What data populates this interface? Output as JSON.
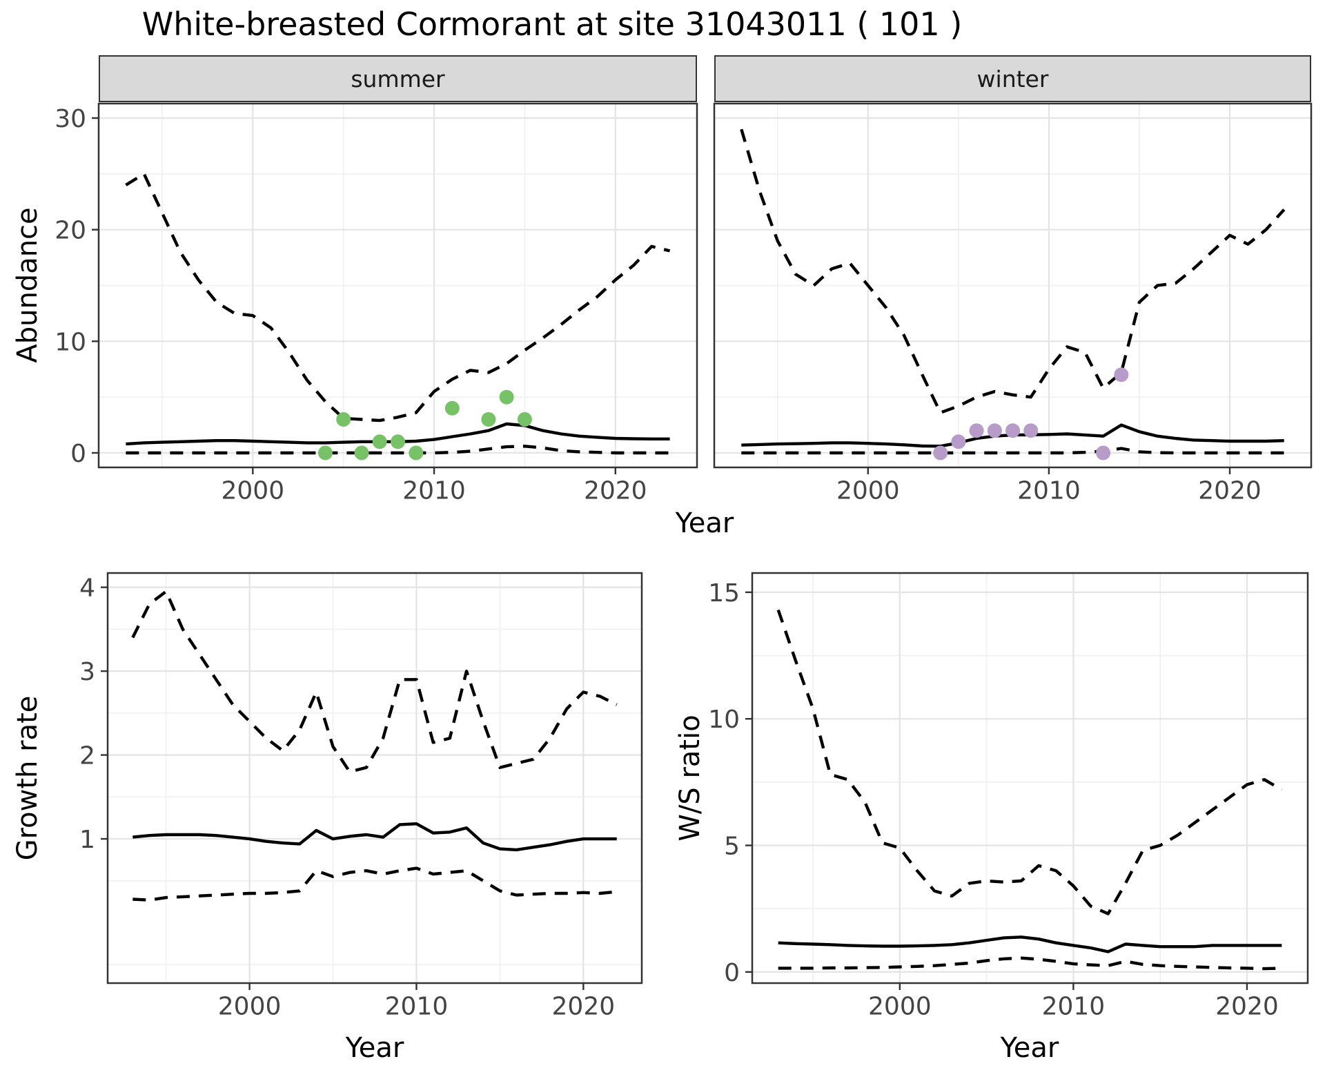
{
  "title": "White-breasted Cormorant at site 31043011 ( 101 )",
  "axis_labels": {
    "abundance": "Abundance",
    "year": "Year",
    "growth_rate": "Growth rate",
    "ws_ratio": "W/S ratio"
  },
  "colors": {
    "line": "#000000",
    "strip_bg": "#d9d9d9",
    "summer_dot": "#77c266",
    "winter_dot": "#b79bc9",
    "grid_major": "#e4e4e4",
    "grid_minor": "#f1f1f1",
    "tick_text": "#444444"
  },
  "chart_data": [
    {
      "type": "line",
      "name": "abundance-summer",
      "facet": "summer",
      "xlabel": "Year",
      "ylabel": "Abundance",
      "xlim": [
        1991.5,
        2024.5
      ],
      "ylim": [
        -1.3,
        31.3
      ],
      "x_ticks": [
        2000,
        2010,
        2020
      ],
      "y_ticks": [
        0,
        10,
        20,
        30
      ],
      "x_minor": [
        1995,
        2005,
        2015
      ],
      "y_minor": [
        5,
        15,
        25
      ],
      "y_tick_labels": true,
      "x": [
        1993,
        1994,
        1995,
        1996,
        1997,
        1998,
        1999,
        2000,
        2001,
        2002,
        2003,
        2004,
        2005,
        2006,
        2007,
        2008,
        2009,
        2010,
        2011,
        2012,
        2013,
        2014,
        2015,
        2016,
        2017,
        2018,
        2019,
        2020,
        2021,
        2022,
        2023
      ],
      "series": [
        {
          "name": "upper-ci",
          "style": "dashed",
          "y": [
            24,
            25,
            21.5,
            18,
            15.5,
            13.5,
            12.5,
            12.3,
            11.2,
            9,
            6.5,
            4.6,
            3.1,
            3,
            2.9,
            3.2,
            3.6,
            5.5,
            6.6,
            7.4,
            7.2,
            8,
            9.2,
            10.3,
            11.5,
            12.8,
            14,
            15.5,
            16.8,
            18.5,
            18.1
          ]
        },
        {
          "name": "median",
          "style": "solid",
          "y": [
            0.8,
            0.9,
            0.95,
            1,
            1.05,
            1.1,
            1.1,
            1.05,
            1,
            0.95,
            0.9,
            0.9,
            0.95,
            1,
            1,
            1,
            1.05,
            1.2,
            1.45,
            1.7,
            2,
            2.6,
            2.45,
            2,
            1.7,
            1.5,
            1.4,
            1.3,
            1.27,
            1.25,
            1.25
          ]
        },
        {
          "name": "lower-ci",
          "style": "dashed",
          "y": [
            0,
            0,
            0,
            0,
            0,
            0,
            0,
            0,
            0,
            0,
            0,
            0,
            0,
            0,
            0,
            0,
            0,
            0,
            0.05,
            0.15,
            0.35,
            0.55,
            0.6,
            0.45,
            0.2,
            0.1,
            0.05,
            0,
            0,
            0,
            0
          ]
        }
      ],
      "points": {
        "name": "observed-count-dot",
        "color": "#77c266",
        "x": [
          2004,
          2005,
          2006,
          2007,
          2008,
          2009,
          2011,
          2013,
          2014,
          2015
        ],
        "y": [
          0,
          3,
          0,
          1,
          1,
          0,
          4,
          3,
          5,
          3
        ]
      }
    },
    {
      "type": "line",
      "name": "abundance-winter",
      "facet": "winter",
      "xlabel": "Year",
      "ylabel": "Abundance",
      "xlim": [
        1991.5,
        2024.5
      ],
      "ylim": [
        -1.3,
        31.3
      ],
      "x_ticks": [
        2000,
        2010,
        2020
      ],
      "y_ticks": [
        0,
        10,
        20,
        30
      ],
      "x_minor": [
        1995,
        2005,
        2015
      ],
      "y_minor": [
        5,
        15,
        25
      ],
      "y_tick_labels": false,
      "x": [
        1993,
        1994,
        1995,
        1996,
        1997,
        1998,
        1999,
        2000,
        2001,
        2002,
        2003,
        2004,
        2005,
        2006,
        2007,
        2008,
        2009,
        2010,
        2011,
        2012,
        2013,
        2014,
        2015,
        2016,
        2017,
        2018,
        2019,
        2020,
        2021,
        2022,
        2023
      ],
      "series": [
        {
          "name": "upper-ci",
          "style": "dashed",
          "y": [
            29,
            23.5,
            19,
            16,
            15,
            16.5,
            17,
            15,
            13,
            10.5,
            7,
            3.6,
            4.2,
            5,
            5.5,
            5.2,
            5,
            7.5,
            9.5,
            9,
            5.8,
            7.2,
            13.5,
            15,
            15.2,
            16.5,
            18,
            19.5,
            18.7,
            20,
            21.8
          ]
        },
        {
          "name": "median",
          "style": "solid",
          "y": [
            0.7,
            0.75,
            0.8,
            0.82,
            0.85,
            0.9,
            0.9,
            0.85,
            0.8,
            0.72,
            0.62,
            0.6,
            0.9,
            1.3,
            1.5,
            1.6,
            1.62,
            1.65,
            1.7,
            1.6,
            1.5,
            2.5,
            1.9,
            1.5,
            1.3,
            1.15,
            1.1,
            1.05,
            1.05,
            1.05,
            1.1
          ]
        },
        {
          "name": "lower-ci",
          "style": "dashed",
          "y": [
            0,
            0,
            0,
            0,
            0,
            0,
            0,
            0,
            0,
            0,
            0,
            0,
            0,
            0,
            0,
            0,
            0,
            0,
            0,
            0.05,
            0.15,
            0.4,
            0.1,
            0.02,
            0,
            0,
            0,
            0,
            0,
            0,
            0
          ]
        }
      ],
      "points": {
        "name": "observed-count-dot",
        "color": "#b79bc9",
        "x": [
          2004,
          2005,
          2006,
          2007,
          2008,
          2009,
          2013,
          2014
        ],
        "y": [
          0,
          1,
          2,
          2,
          2,
          2,
          0,
          7
        ]
      }
    },
    {
      "type": "line",
      "name": "growth-rate",
      "facet": null,
      "xlabel": "Year",
      "ylabel": "Growth rate",
      "xlim": [
        1991.5,
        2023.5
      ],
      "ylim": [
        -0.72,
        4.17
      ],
      "x_ticks": [
        2000,
        2010,
        2020
      ],
      "y_ticks": [
        1,
        2,
        3,
        4
      ],
      "x_minor": [
        1995,
        2005,
        2015
      ],
      "y_minor": [
        -0.5,
        0.5,
        1.5,
        2.5,
        3.5
      ],
      "y_tick_labels": true,
      "x": [
        1993,
        1994,
        1995,
        1996,
        1997,
        1998,
        1999,
        2000,
        2001,
        2002,
        2003,
        2004,
        2005,
        2006,
        2007,
        2008,
        2009,
        2010,
        2011,
        2012,
        2013,
        2014,
        2015,
        2016,
        2017,
        2018,
        2019,
        2020,
        2021,
        2022
      ],
      "series": [
        {
          "name": "upper-ci",
          "style": "dashed",
          "y": [
            3.4,
            3.8,
            3.95,
            3.5,
            3.2,
            2.9,
            2.6,
            2.4,
            2.2,
            2.05,
            2.3,
            2.75,
            2.1,
            1.8,
            1.85,
            2.2,
            2.9,
            2.9,
            2.15,
            2.2,
            3,
            2.4,
            1.85,
            1.9,
            1.95,
            2.2,
            2.55,
            2.75,
            2.7,
            2.6
          ]
        },
        {
          "name": "median",
          "style": "solid",
          "y": [
            1.02,
            1.04,
            1.05,
            1.05,
            1.05,
            1.04,
            1.02,
            1,
            0.97,
            0.95,
            0.94,
            1.1,
            1,
            1.03,
            1.05,
            1.02,
            1.17,
            1.18,
            1.07,
            1.08,
            1.13,
            0.95,
            0.88,
            0.87,
            0.9,
            0.93,
            0.97,
            1,
            1,
            1
          ]
        },
        {
          "name": "lower-ci",
          "style": "dashed",
          "y": [
            0.28,
            0.27,
            0.3,
            0.31,
            0.32,
            0.33,
            0.34,
            0.35,
            0.35,
            0.36,
            0.38,
            0.62,
            0.55,
            0.6,
            0.62,
            0.58,
            0.62,
            0.65,
            0.58,
            0.6,
            0.62,
            0.5,
            0.38,
            0.33,
            0.34,
            0.35,
            0.35,
            0.36,
            0.35,
            0.37
          ]
        }
      ],
      "points": null
    },
    {
      "type": "line",
      "name": "ws-ratio",
      "facet": null,
      "xlabel": "Year",
      "ylabel": "W/S ratio",
      "xlim": [
        1991.5,
        2023.5
      ],
      "ylim": [
        -0.44,
        15.76
      ],
      "x_ticks": [
        2000,
        2010,
        2020
      ],
      "y_ticks": [
        0,
        5,
        10,
        15
      ],
      "x_minor": [
        1995,
        2005,
        2015
      ],
      "y_minor": [
        2.5,
        7.5,
        12.5
      ],
      "y_tick_labels": true,
      "x": [
        1993,
        1994,
        1995,
        1996,
        1997,
        1998,
        1999,
        2000,
        2001,
        2002,
        2003,
        2004,
        2005,
        2006,
        2007,
        2008,
        2009,
        2010,
        2011,
        2012,
        2013,
        2014,
        2015,
        2016,
        2017,
        2018,
        2019,
        2020,
        2021,
        2022
      ],
      "series": [
        {
          "name": "upper-ci",
          "style": "dashed",
          "y": [
            14.3,
            12.3,
            10.4,
            7.8,
            7.6,
            6.7,
            5.1,
            4.9,
            4,
            3.2,
            3,
            3.5,
            3.6,
            3.55,
            3.6,
            4.2,
            4,
            3.4,
            2.6,
            2.3,
            3.5,
            4.8,
            5,
            5.4,
            5.9,
            6.4,
            6.9,
            7.4,
            7.6,
            7.2
          ]
        },
        {
          "name": "median",
          "style": "solid",
          "y": [
            1.15,
            1.12,
            1.1,
            1.08,
            1.05,
            1.03,
            1.02,
            1.02,
            1.03,
            1.05,
            1.08,
            1.15,
            1.25,
            1.35,
            1.38,
            1.3,
            1.15,
            1.05,
            0.95,
            0.8,
            1.1,
            1.05,
            1,
            1,
            1,
            1.05,
            1.05,
            1.05,
            1.05,
            1.05
          ]
        },
        {
          "name": "lower-ci",
          "style": "dashed",
          "y": [
            0.15,
            0.15,
            0.15,
            0.16,
            0.16,
            0.17,
            0.18,
            0.2,
            0.22,
            0.25,
            0.3,
            0.35,
            0.45,
            0.52,
            0.55,
            0.5,
            0.42,
            0.32,
            0.28,
            0.25,
            0.42,
            0.3,
            0.25,
            0.22,
            0.2,
            0.18,
            0.16,
            0.15,
            0.13,
            0.15
          ]
        }
      ],
      "points": null
    }
  ]
}
